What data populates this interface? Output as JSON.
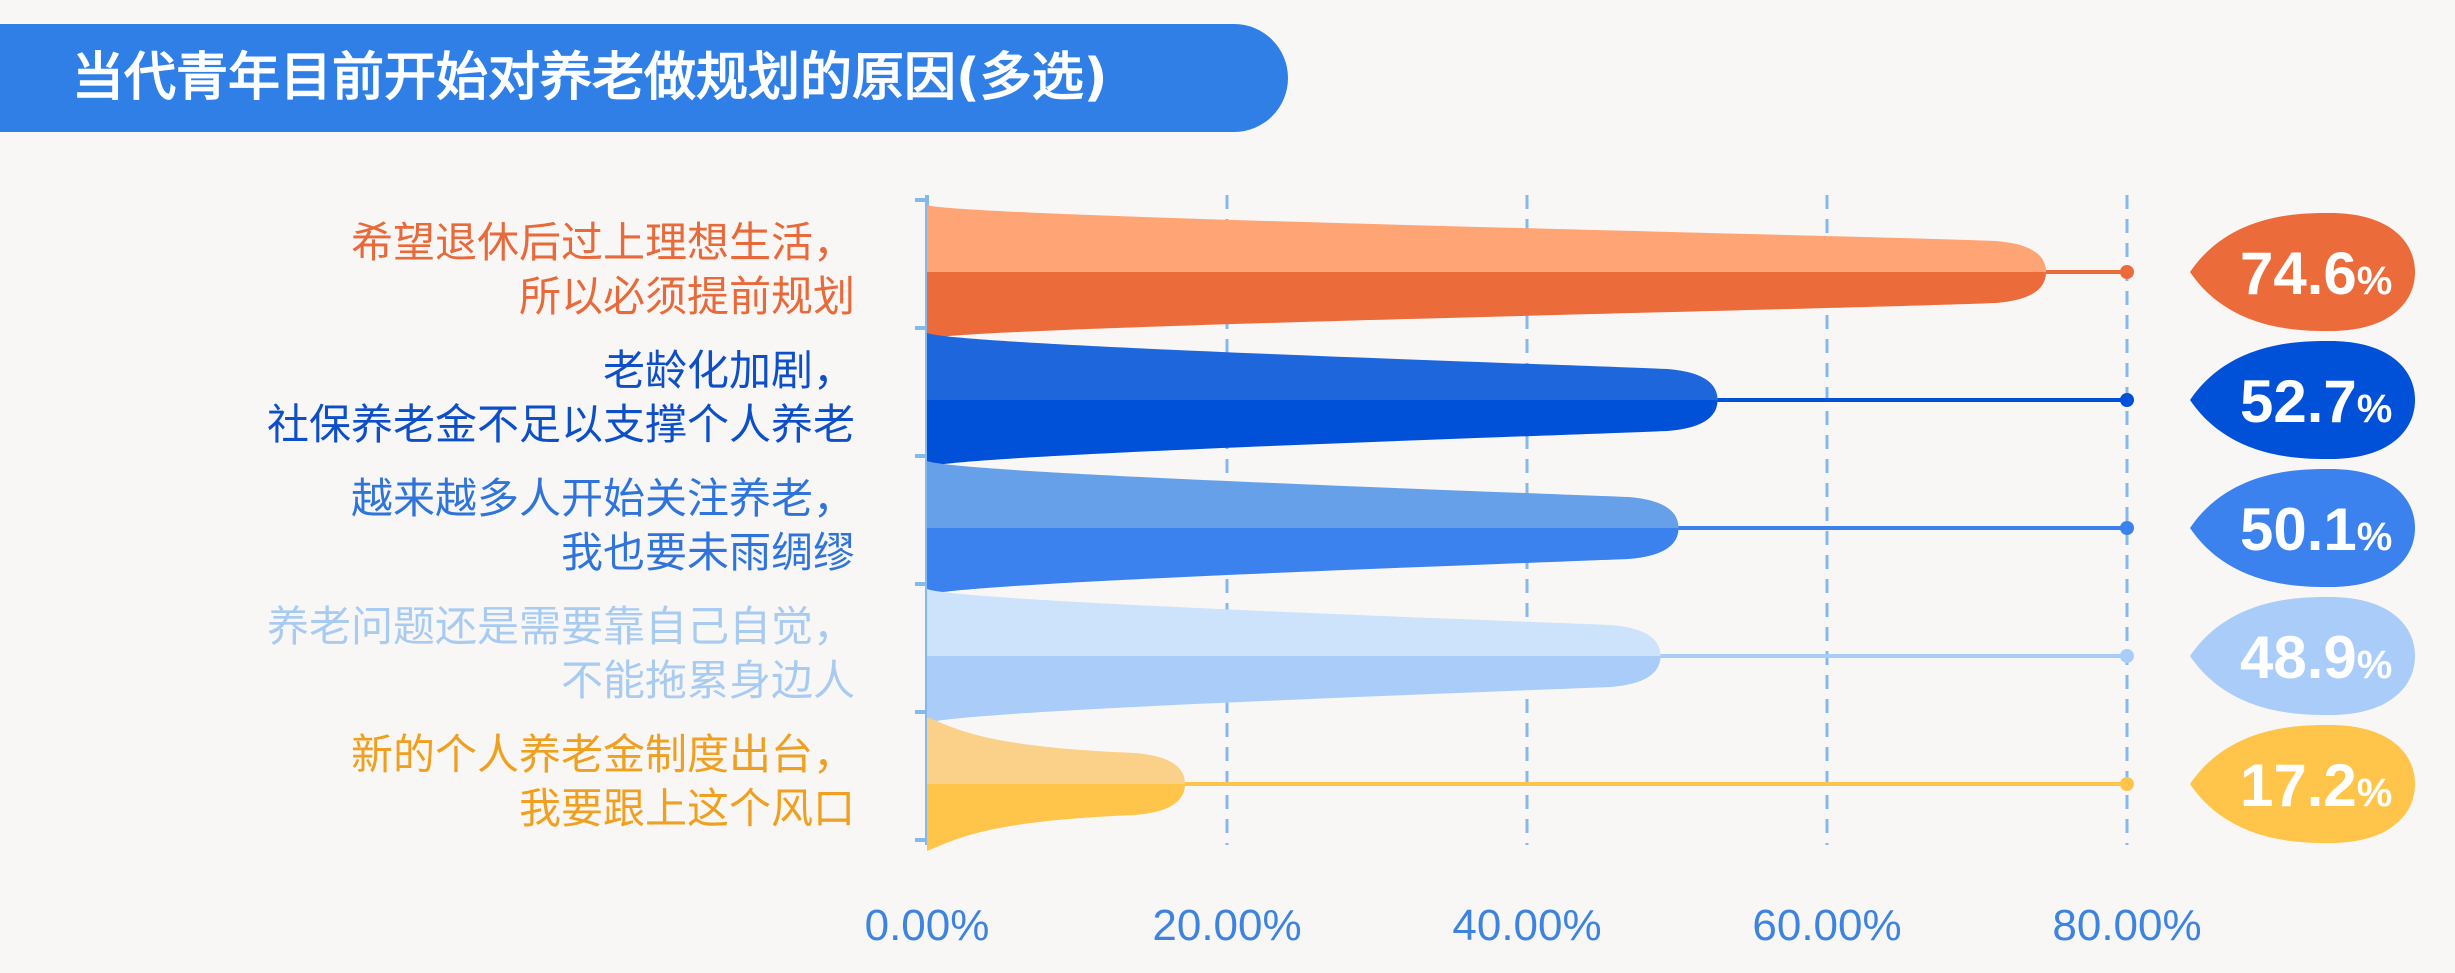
{
  "title": "当代青年目前开始对养老做规划的原因(多选)",
  "colors": {
    "title_bg": "#2f7fe6",
    "title_accent": "#f6c343",
    "axis": "#86b8f0",
    "tick_text": "#3d83e0"
  },
  "chart_data": {
    "type": "bar",
    "orientation": "horizontal",
    "title": "当代青年目前开始对养老做规划的原因(多选)",
    "xlim": [
      0,
      80
    ],
    "x_ticks": [
      "0.00%",
      "20.00%",
      "40.00%",
      "60.00%",
      "80.00%"
    ],
    "x_tick_values": [
      0,
      20,
      40,
      60,
      80
    ],
    "grid": "vertical dashed",
    "categories": [
      {
        "line1": "希望退休后过上理想生活，",
        "line2": "所以必须提前规划",
        "value": 74.6,
        "value_label": "74.6",
        "color_top": "#ffa474",
        "color_bottom": "#ec6b3b",
        "text_color": "#e8693a"
      },
      {
        "line1": "老龄化加剧，",
        "line2": "社保养老金不足以支撑个人养老",
        "value": 52.7,
        "value_label": "52.7",
        "color_top": "#1e66db",
        "color_bottom": "#0050d8",
        "text_color": "#0d4fc8"
      },
      {
        "line1": "越来越多人开始关注养老，",
        "line2": "我也要未雨绸缪",
        "value": 50.1,
        "value_label": "50.1",
        "color_top": "#66a0e8",
        "color_bottom": "#3b82ee",
        "text_color": "#2f74da"
      },
      {
        "line1": "养老问题还是需要靠自己自觉，",
        "line2": "不能拖累身边人",
        "value": 48.9,
        "value_label": "48.9",
        "color_top": "#cde2fb",
        "color_bottom": "#a9cdf8",
        "text_color": "#a8cbf2"
      },
      {
        "line1": "新的个人养老金制度出台，",
        "line2": "我要跟上这个风口",
        "value": 17.2,
        "value_label": "17.2",
        "color_top": "#fbd088",
        "color_bottom": "#ffc54a",
        "text_color": "#f0a020"
      }
    ],
    "percent_sign": "%"
  }
}
